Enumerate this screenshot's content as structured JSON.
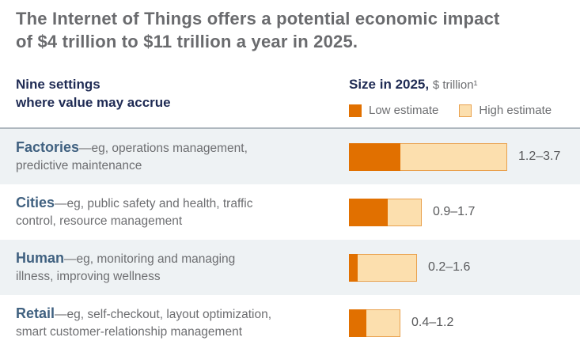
{
  "title": "The Internet of Things offers a potential economic impact\nof $4 trillion to $11 trillion a year in 2025.",
  "header": {
    "left": "Nine settings\nwhere value may accrue",
    "right_bold": "Size in 2025,",
    "right_unit": "$ trillion¹",
    "legend": [
      {
        "label": "Low estimate",
        "swatch": "low"
      },
      {
        "label": "High estimate",
        "swatch": "high"
      }
    ]
  },
  "colors": {
    "low": "#e17000",
    "high_fill": "#fcdfae",
    "high_border": "#e9a14e",
    "band": "#eef2f4",
    "navy": "#1f2b54",
    "category_blue": "#406180",
    "text_gray": "#6d6e71",
    "title_gray": "#6a6b6e",
    "label_gray": "#58595b",
    "hairline": "#aeb7be"
  },
  "chart_data": {
    "type": "bar",
    "orientation": "horizontal",
    "stacked": true,
    "title": "Size in 2025, $ trillion",
    "categories": [
      "Factories",
      "Cities",
      "Human",
      "Retail"
    ],
    "series": [
      {
        "name": "Low estimate",
        "values": [
          1.2,
          0.9,
          0.2,
          0.4
        ]
      },
      {
        "name": "High estimate",
        "values": [
          3.7,
          1.7,
          1.6,
          1.2
        ]
      }
    ],
    "data_labels": [
      "1.2–3.7",
      "0.9–1.7",
      "0.2–1.6",
      "0.4–1.2"
    ],
    "xlim": [
      0,
      3.7
    ],
    "legend_position": "top-right",
    "grid": false
  },
  "rows": [
    {
      "category": "Factories",
      "description": "—eg, operations management,\npredictive maintenance",
      "low": 1.2,
      "high": 3.7,
      "range_label": "1.2–3.7",
      "shaded": true
    },
    {
      "category": "Cities",
      "description": "—eg, public safety and health, traffic\ncontrol, resource management",
      "low": 0.9,
      "high": 1.7,
      "range_label": "0.9–1.7",
      "shaded": false
    },
    {
      "category": "Human",
      "description": "—eg, monitoring and managing\nillness, improving wellness",
      "low": 0.2,
      "high": 1.6,
      "range_label": "0.2–1.6",
      "shaded": true
    },
    {
      "category": "Retail",
      "description": "—eg, self-checkout, layout optimization,\nsmart customer-relationship management",
      "low": 0.4,
      "high": 1.2,
      "range_label": "0.4–1.2",
      "shaded": false
    }
  ]
}
